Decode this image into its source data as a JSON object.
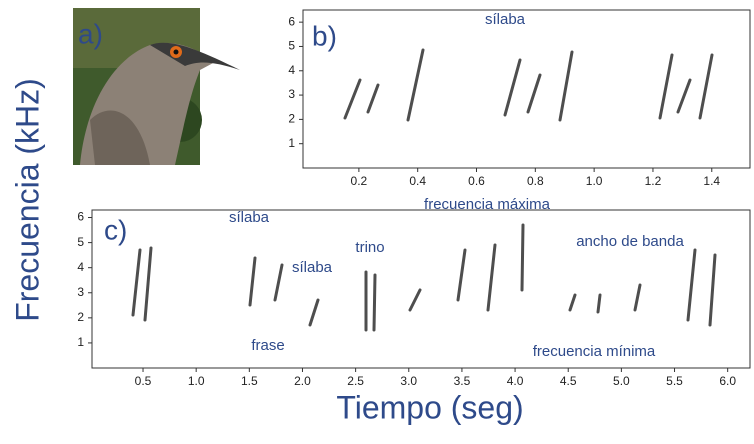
{
  "figure": {
    "ylabel": "Frecuencia (kHz)",
    "panel_a": "a)"
  },
  "chart_data": [
    {
      "type": "spectrogram",
      "title": "b)",
      "xlim": [
        0.01,
        1.53
      ],
      "ylim": [
        0,
        6.5
      ],
      "xticks": [
        0.2,
        0.4,
        0.6,
        0.8,
        {
          "value": 1,
          "label": "1.0"
        },
        1.2,
        1.4
      ],
      "yticks": [
        1,
        2,
        3,
        4,
        5,
        6
      ],
      "annotations": [
        "sílaba"
      ]
    },
    {
      "type": "spectrogram",
      "title": "c)",
      "xlabel": "Tiempo (seg)",
      "xlim": [
        0.02,
        6.21
      ],
      "ylim": [
        0,
        6.3
      ],
      "xticks": [
        0.5,
        {
          "value": 1,
          "label": "1.0"
        },
        1.5,
        {
          "value": 2,
          "label": "2.0"
        },
        2.5,
        {
          "value": 3,
          "label": "3.0"
        },
        3.5,
        {
          "value": 4,
          "label": "4.0"
        },
        4.5,
        {
          "value": 5,
          "label": "5.0"
        },
        5.5,
        {
          "value": 6,
          "label": "6.0"
        }
      ],
      "yticks": [
        1,
        2,
        3,
        4,
        5,
        6
      ],
      "annotations": [
        "sílaba",
        "frase",
        "sílaba",
        "trino",
        "frecuencia máxima",
        "ancho de banda",
        "frecuencia mínima"
      ]
    }
  ]
}
